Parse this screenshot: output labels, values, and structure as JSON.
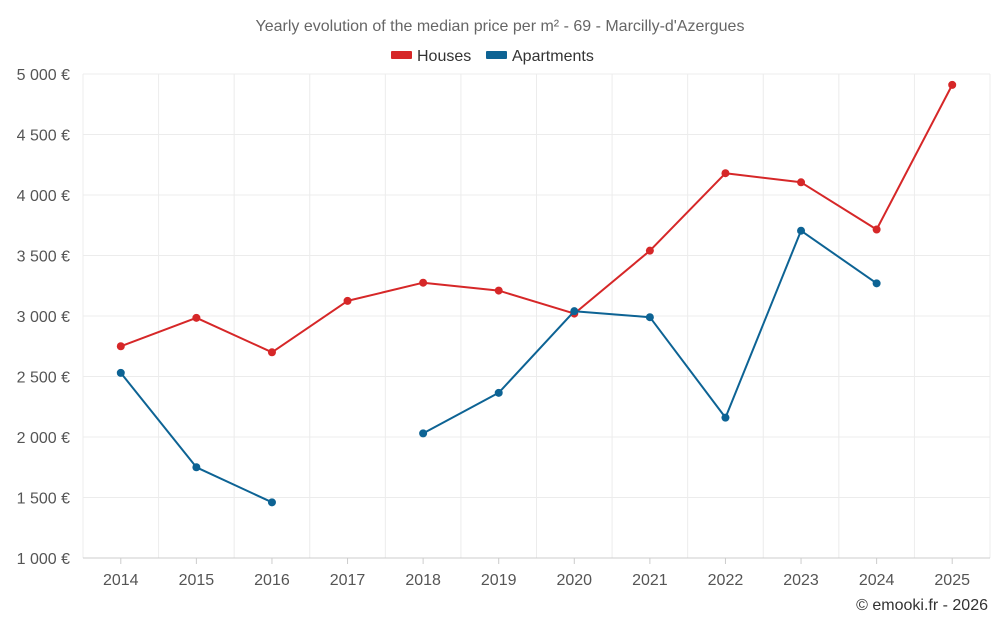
{
  "chart_data": {
    "type": "line",
    "title": "Yearly evolution of the median price per m² - 69 - Marcilly-d'Azergues",
    "categories": [
      "2014",
      "2015",
      "2016",
      "2017",
      "2018",
      "2019",
      "2020",
      "2021",
      "2022",
      "2023",
      "2024",
      "2025"
    ],
    "series": [
      {
        "name": "Houses",
        "color": "#d62728",
        "values": [
          2750,
          2985,
          2700,
          3125,
          3275,
          3210,
          3020,
          3540,
          4180,
          4105,
          3715,
          4910
        ]
      },
      {
        "name": "Apartments",
        "color": "#0d6394",
        "values": [
          2530,
          1750,
          1460,
          null,
          2030,
          2365,
          3040,
          2990,
          2160,
          3705,
          3270,
          null
        ]
      }
    ],
    "y_ticks": [
      {
        "value": 1000,
        "label": "1 000 €"
      },
      {
        "value": 1500,
        "label": "1 500 €"
      },
      {
        "value": 2000,
        "label": "2 000 €"
      },
      {
        "value": 2500,
        "label": "2 500 €"
      },
      {
        "value": 3000,
        "label": "3 000 €"
      },
      {
        "value": 3500,
        "label": "3 500 €"
      },
      {
        "value": 4000,
        "label": "4 000 €"
      },
      {
        "value": 4500,
        "label": "4 500 €"
      },
      {
        "value": 5000,
        "label": "5 000 €"
      }
    ],
    "ylim": [
      1000,
      5000
    ],
    "xlabel": "",
    "ylabel": "",
    "grid": true,
    "legend_position": "top-center"
  },
  "credit": "© emooki.fr - 2026"
}
